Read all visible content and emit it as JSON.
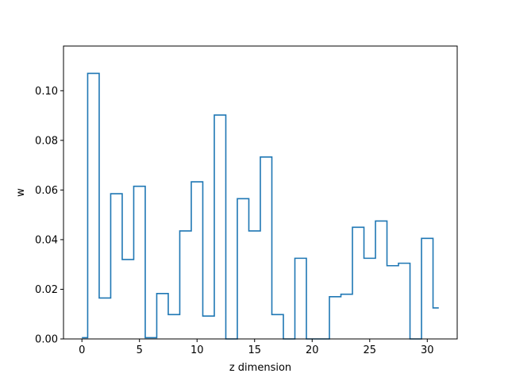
{
  "chart_data": {
    "type": "step",
    "title": "",
    "xlabel": "z dimension",
    "ylabel": "w",
    "xlim": [
      -1.6,
      32.6
    ],
    "ylim": [
      0,
      0.118
    ],
    "xticks": [
      0,
      5,
      10,
      15,
      20,
      25,
      30
    ],
    "yticks": [
      0.0,
      0.02,
      0.04,
      0.06,
      0.08,
      0.1
    ],
    "ytick_labels": [
      "0.00",
      "0.02",
      "0.04",
      "0.06",
      "0.08",
      "0.10"
    ],
    "grid": false,
    "step_where": "mid",
    "series": [
      {
        "color": "#1f77b4",
        "x": [
          0,
          1,
          2,
          3,
          4,
          5,
          6,
          7,
          8,
          9,
          10,
          11,
          12,
          13,
          14,
          15,
          16,
          17,
          18,
          19,
          20,
          21,
          22,
          23,
          24,
          25,
          26,
          27,
          28,
          29,
          30,
          31
        ],
        "values": [
          0.0005,
          0.107,
          0.0165,
          0.0585,
          0.032,
          0.0615,
          0.0005,
          0.0183,
          0.0098,
          0.0435,
          0.0633,
          0.0092,
          0.0902,
          0.0,
          0.0565,
          0.0435,
          0.0733,
          0.0098,
          0.0,
          0.0325,
          0.0,
          0.0,
          0.017,
          0.018,
          0.045,
          0.0325,
          0.0475,
          0.0295,
          0.0305,
          0.0,
          0.0405,
          0.0125
        ]
      }
    ]
  }
}
